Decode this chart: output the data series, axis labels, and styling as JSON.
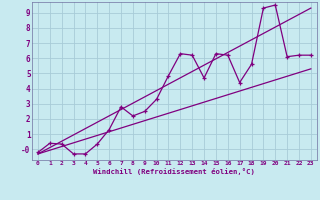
{
  "xlabel": "Windchill (Refroidissement éolien,°C)",
  "bg_color": "#c8eaf0",
  "line_color": "#800080",
  "grid_color": "#a8ccd8",
  "spine_color": "#7070a0",
  "xlim": [
    -0.5,
    23.5
  ],
  "ylim": [
    -0.7,
    9.7
  ],
  "xticks": [
    0,
    1,
    2,
    3,
    4,
    5,
    6,
    7,
    8,
    9,
    10,
    11,
    12,
    13,
    14,
    15,
    16,
    17,
    18,
    19,
    20,
    21,
    22,
    23
  ],
  "yticks": [
    0,
    1,
    2,
    3,
    4,
    5,
    6,
    7,
    8,
    9
  ],
  "ytick_labels": [
    "-0",
    "1",
    "2",
    "3",
    "4",
    "5",
    "6",
    "7",
    "8",
    "9"
  ],
  "line1_x": [
    0,
    1,
    2,
    3,
    4,
    5,
    6,
    7,
    8,
    9,
    10,
    11,
    12,
    13,
    14,
    15,
    16,
    17,
    18,
    19,
    20,
    21,
    22,
    23
  ],
  "line1_y": [
    -0.2,
    0.4,
    0.35,
    -0.3,
    -0.3,
    0.35,
    1.3,
    2.8,
    2.2,
    2.5,
    3.3,
    4.85,
    6.3,
    6.2,
    4.7,
    6.3,
    6.2,
    4.4,
    5.6,
    9.3,
    9.5,
    6.1,
    6.2,
    6.2
  ],
  "line2_x": [
    0,
    23
  ],
  "line2_y": [
    -0.3,
    9.3
  ],
  "line3_x": [
    0,
    23
  ],
  "line3_y": [
    -0.3,
    5.3
  ]
}
